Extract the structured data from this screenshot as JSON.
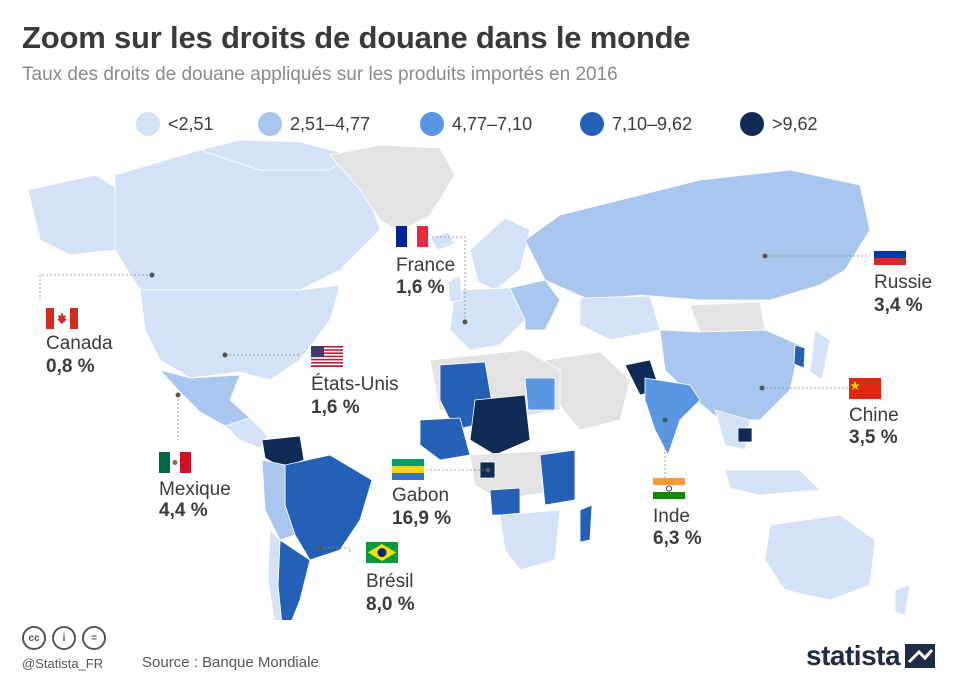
{
  "header": {
    "title": "Zoom sur les droits de douane dans le monde",
    "subtitle": "Taux des droits de douane appliqués sur les produits importés en 2016"
  },
  "legend": [
    {
      "label": "<2,51",
      "color": "#d3e2f6"
    },
    {
      "label": "2,51–4,77",
      "color": "#a9c6ee"
    },
    {
      "label": "4,77–7,10",
      "color": "#5a96e2"
    },
    {
      "label": "7,10–9,62",
      "color": "#2460b5"
    },
    {
      "label": ">9,62",
      "color": "#0f2a55"
    }
  ],
  "map": {
    "no_data_color": "#e3e3e3",
    "highlight_color": "#2a2f8a"
  },
  "callouts": {
    "canada": {
      "name": "Canada",
      "value": "0,8 %",
      "flag_icon": "canada-flag-icon"
    },
    "etats_unis": {
      "name": "États-Unis",
      "value": "1,6 %",
      "flag_icon": "usa-flag-icon"
    },
    "mexique": {
      "name": "Mexique",
      "value": "4,4 %",
      "flag_icon": "mexico-flag-icon"
    },
    "france": {
      "name": "France",
      "value": "1,6 %",
      "flag_icon": "france-flag-icon"
    },
    "gabon": {
      "name": "Gabon",
      "value": "16,9 %",
      "flag_icon": "gabon-flag-icon"
    },
    "bresil": {
      "name": "Brésil",
      "value": "8,0 %",
      "flag_icon": "brazil-flag-icon"
    },
    "russie": {
      "name": "Russie",
      "value": "3,4 %",
      "flag_icon": "russia-flag-icon"
    },
    "chine": {
      "name": "Chine",
      "value": "3,5 %",
      "flag_icon": "china-flag-icon"
    },
    "inde": {
      "name": "Inde",
      "value": "6,3 %",
      "flag_icon": "india-flag-icon"
    }
  },
  "footer": {
    "handle": "@Statista_FR",
    "source": "Source : Banque Mondiale",
    "brand": "statista",
    "license_icons": [
      "cc-icon",
      "attribution-icon",
      "no-derivatives-icon"
    ],
    "license_icon_glyphs": [
      "cc",
      "i",
      "="
    ]
  }
}
